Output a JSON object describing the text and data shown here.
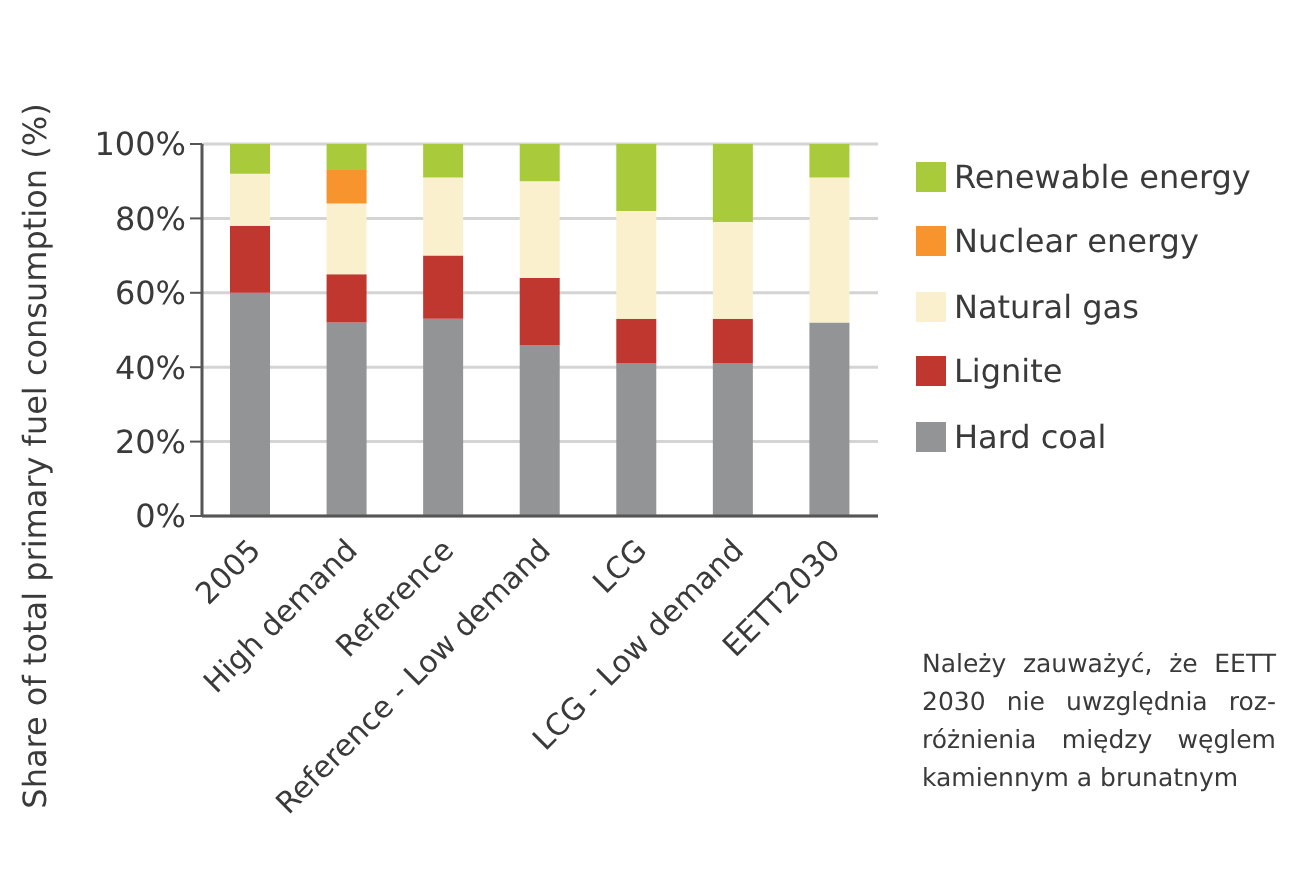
{
  "chart_data": {
    "type": "bar",
    "stacked": true,
    "ylabel": "Share of total primary fuel consumption (%)",
    "categories": [
      "2005",
      "High demand",
      "Reference",
      "Reference - Low demand",
      "LCG",
      "LCG - Low demand",
      "EETT2030"
    ],
    "series": [
      {
        "name": "Hard coal",
        "color": "#939495",
        "values": [
          60,
          52,
          53,
          46,
          41,
          41,
          52
        ]
      },
      {
        "name": "Lignite",
        "color": "#c0372f",
        "values": [
          18,
          13,
          17,
          18,
          12,
          12,
          null
        ]
      },
      {
        "name": "Natural gas",
        "color": "#faf0cd",
        "values": [
          14,
          19,
          21,
          26,
          29,
          26,
          39
        ]
      },
      {
        "name": "Nuclear energy",
        "color": "#f7942d",
        "values": [
          null,
          9,
          null,
          null,
          null,
          null,
          null
        ]
      },
      {
        "name": "Renewable energy",
        "color": "#a9ca3b",
        "values": [
          8,
          7,
          9,
          10,
          18,
          21,
          9
        ]
      }
    ],
    "ylim": [
      0,
      100
    ],
    "yticks": [
      {
        "value": 0,
        "label": "0%"
      },
      {
        "value": 20,
        "label": "20%"
      },
      {
        "value": 40,
        "label": "40%"
      },
      {
        "value": 60,
        "label": "60%"
      },
      {
        "value": 80,
        "label": "80%"
      },
      {
        "value": 100,
        "label": "100%"
      }
    ],
    "grid": "y",
    "legend": "right",
    "annotations": [
      "Należy zauważyć, że EETT\n2030 nie uwzględnia roz-\nróżnienia między węglem\nkamiennym a brunatnym"
    ]
  }
}
